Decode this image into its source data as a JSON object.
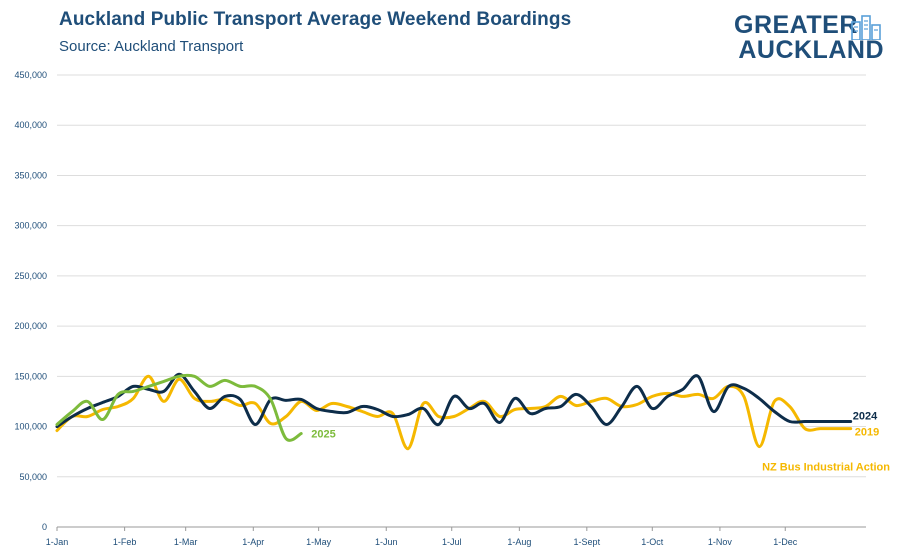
{
  "header": {
    "title": "Auckland Public Transport Average Weekend Boardings",
    "subtitle": "Source: Auckland Transport"
  },
  "logo": {
    "line1": "GREATER",
    "line2": "AUCKLAND",
    "icon": "city-buildings-icon"
  },
  "colors": {
    "series_2019": "#f5b800",
    "series_2024": "#0d2d4a",
    "series_2025": "#7dbb3c",
    "axis_text": "#1f4e79",
    "grid": "#dddddd"
  },
  "chart_data": {
    "type": "line",
    "title": "Auckland Public Transport Average Weekend Boardings",
    "subtitle": "Source: Auckland Transport",
    "xlabel": "",
    "ylabel": "",
    "ylim": [
      0,
      450000
    ],
    "yticks": [
      0,
      50000,
      100000,
      150000,
      200000,
      250000,
      300000,
      350000,
      400000,
      450000
    ],
    "ytick_labels": [
      "0",
      "50,000",
      "100,000",
      "150,000",
      "200,000",
      "250,000",
      "300,000",
      "350,000",
      "400,000",
      "450,000"
    ],
    "xlim": [
      0,
      53
    ],
    "xticks": [
      0,
      4.43,
      8.43,
      12.86,
      17.14,
      21.57,
      25.86,
      30.29,
      34.71,
      39.0,
      43.43,
      47.71
    ],
    "xtick_labels": [
      "1-Jan",
      "1-Feb",
      "1-Mar",
      "1-Apr",
      "1-May",
      "1-Jun",
      "1-Jul",
      "1-Aug",
      "1-Sept",
      "1-Oct",
      "1-Nov",
      "1-Dec"
    ],
    "grid": true,
    "legend": "inline labels at line ends",
    "series": [
      {
        "name": "2019",
        "color": "#f5b800",
        "x": [
          0,
          1,
          2,
          3,
          4,
          5,
          6,
          7,
          8,
          9,
          10,
          11,
          12,
          13,
          14,
          15,
          16,
          17,
          18,
          19,
          20,
          21,
          22,
          23,
          24,
          25,
          26,
          27,
          28,
          29,
          30,
          31,
          32,
          33,
          34,
          35,
          36,
          37,
          38,
          39,
          40,
          41,
          42,
          43,
          44,
          45,
          46,
          47,
          48,
          49,
          50,
          51,
          52
        ],
        "values": [
          96000,
          110000,
          110000,
          117000,
          120000,
          128000,
          150000,
          125000,
          147000,
          128000,
          125000,
          127000,
          121000,
          123000,
          103000,
          110000,
          125000,
          116000,
          123000,
          120000,
          115000,
          110000,
          113000,
          78000,
          123000,
          110000,
          110000,
          118000,
          125000,
          110000,
          117000,
          118000,
          120000,
          130000,
          121000,
          125000,
          128000,
          120000,
          122000,
          130000,
          133000,
          130000,
          132000,
          128000,
          140000,
          130000,
          80000,
          125000,
          120000,
          98000,
          98000,
          98000,
          98000
        ],
        "label": "2019"
      },
      {
        "name": "2024",
        "color": "#0d2d4a",
        "x": [
          0,
          1,
          2,
          3,
          4,
          5,
          6,
          7,
          8,
          9,
          10,
          11,
          12,
          13,
          14,
          15,
          16,
          17,
          18,
          19,
          20,
          21,
          22,
          23,
          24,
          25,
          26,
          27,
          28,
          29,
          30,
          31,
          32,
          33,
          34,
          35,
          36,
          37,
          38,
          39,
          40,
          41,
          42,
          43,
          44,
          45,
          46,
          47,
          48,
          49,
          50,
          51,
          52
        ],
        "values": [
          100000,
          110000,
          118000,
          124000,
          130000,
          140000,
          137000,
          135000,
          152000,
          135000,
          118000,
          130000,
          127000,
          102000,
          127000,
          126000,
          127000,
          118000,
          115000,
          114000,
          120000,
          117000,
          110000,
          112000,
          118000,
          102000,
          130000,
          118000,
          123000,
          104000,
          128000,
          113000,
          118000,
          120000,
          132000,
          120000,
          102000,
          120000,
          140000,
          118000,
          130000,
          137000,
          150000,
          115000,
          140000,
          138000,
          128000,
          115000,
          105000,
          105000,
          105000,
          105000,
          105000
        ],
        "label": "2024"
      },
      {
        "name": "2025",
        "color": "#7dbb3c",
        "x": [
          0,
          1,
          2,
          3,
          4,
          5,
          6,
          7,
          8,
          9,
          10,
          11,
          12,
          13,
          14,
          15,
          16
        ],
        "values": [
          102000,
          115000,
          125000,
          107000,
          132000,
          135000,
          140000,
          145000,
          150000,
          150000,
          140000,
          146000,
          140000,
          140000,
          127000,
          88000,
          93000
        ],
        "label": "2025"
      }
    ],
    "annotations": [
      {
        "text": "NZ Bus Industrial Action",
        "color": "#f5b800"
      }
    ]
  }
}
